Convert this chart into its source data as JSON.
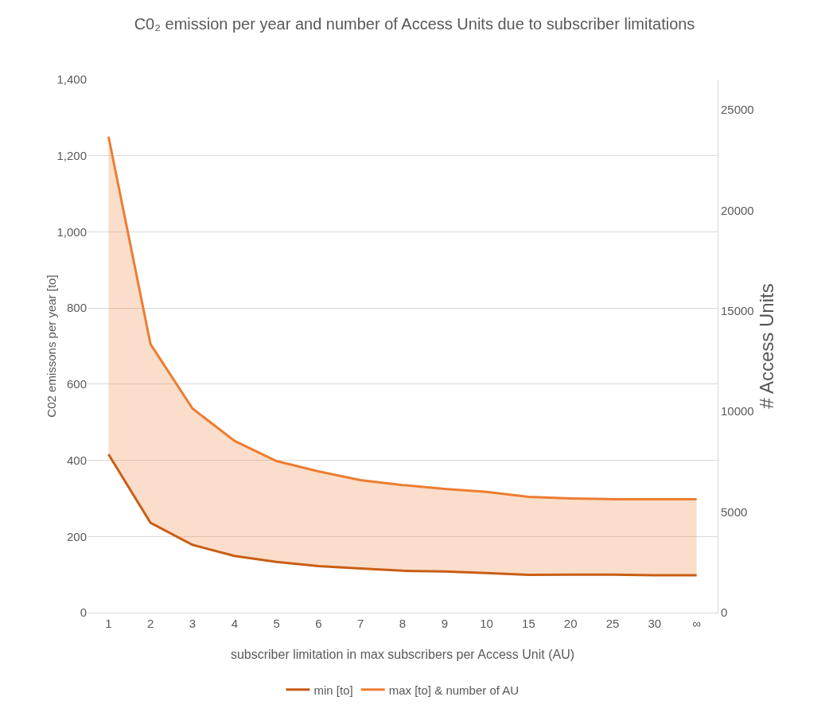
{
  "chart_data": {
    "type": "line",
    "title": "C0₂ emission per year and number of Access Units due to subscriber limitations",
    "xlabel": "subscriber limitation in max subscribers per Access Unit (AU)",
    "ylabel": "C02 emissons per year [to]",
    "y2label": "# Access Units",
    "categories": [
      "1",
      "2",
      "3",
      "4",
      "5",
      "6",
      "7",
      "8",
      "9",
      "10",
      "15",
      "20",
      "25",
      "30",
      "∞"
    ],
    "series": [
      {
        "name": "min [to]",
        "color": "#c55a11",
        "values": [
          416,
          236,
          178,
          149,
          133,
          122,
          116,
          110,
          108,
          104,
          99,
          100,
          100,
          98,
          98
        ]
      },
      {
        "name": "max [to] & number of AU",
        "color": "#ed7d31",
        "values": [
          1250,
          705,
          536,
          451,
          398,
          371,
          348,
          335,
          325,
          317,
          304,
          300,
          298,
          298,
          298
        ],
        "lower": [
          416,
          236,
          178,
          149,
          133,
          122,
          116,
          110,
          108,
          104,
          99,
          100,
          100,
          98,
          98
        ],
        "upper": [
          1250,
          705,
          536,
          451,
          398,
          371,
          348,
          335,
          325,
          317,
          304,
          300,
          298,
          298,
          298
        ]
      }
    ],
    "ylim": [
      0,
      1400
    ],
    "yticks": [
      0,
      200,
      400,
      600,
      800,
      {
        "value": 1000,
        "label": "1,000"
      },
      {
        "value": 1200,
        "label": "1,200"
      },
      {
        "value": 1400,
        "label": "1,400"
      }
    ],
    "y2lim": [
      0,
      26500
    ],
    "y2ticks": [
      0,
      5000,
      10000,
      15000,
      20000,
      25000
    ],
    "grid": "y",
    "legend": "bottom",
    "marker": "none",
    "line_style": "solid"
  }
}
